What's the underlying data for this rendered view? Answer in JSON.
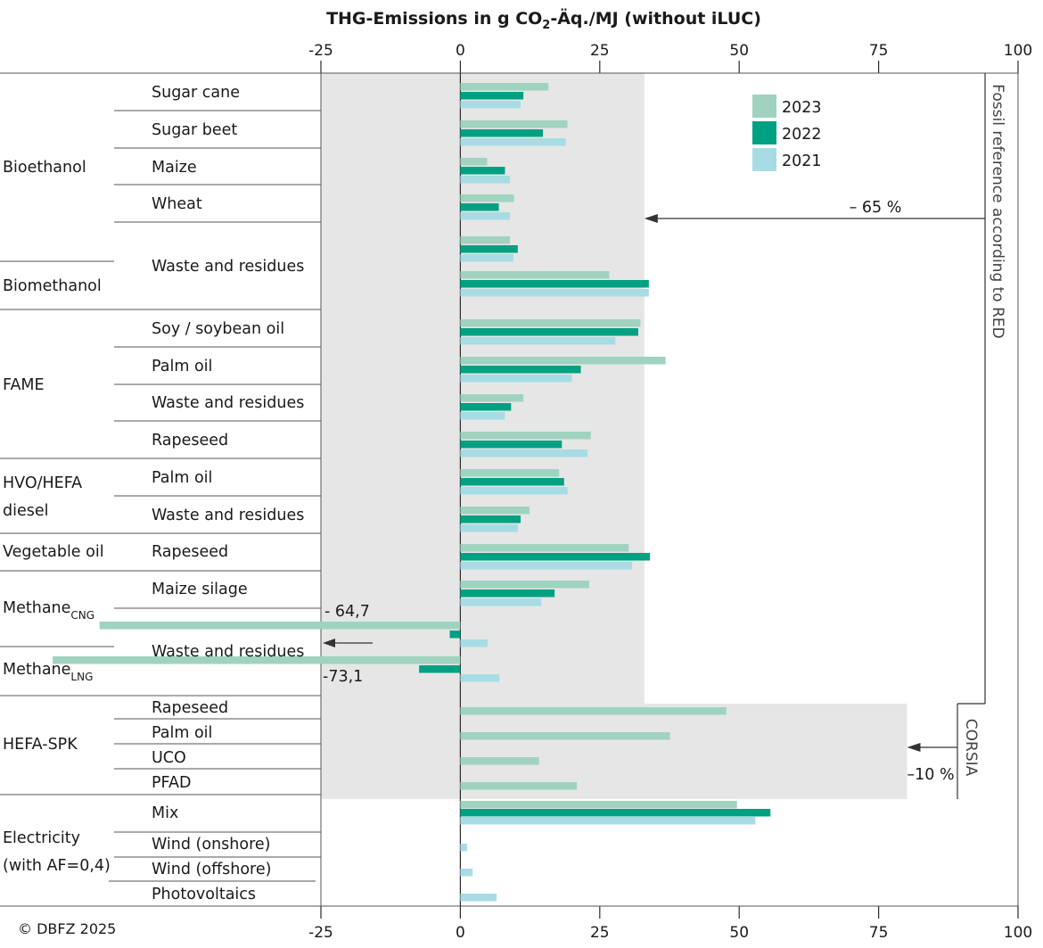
{
  "chart_data": {
    "type": "bar",
    "orientation": "horizontal",
    "title_parts": [
      "THG-Emissions in g CO",
      "2",
      "-Äq./MJ (without iLUC)"
    ],
    "xlim": [
      -25,
      100
    ],
    "xticks": [
      "-25",
      "0",
      "25",
      "50",
      "75",
      "100"
    ],
    "legend": {
      "position": "top-right",
      "entries": [
        "2023",
        "2022",
        "2021"
      ]
    },
    "colors": {
      "2023": "#9fd3c0",
      "2022": "#00a082",
      "2021": "#a7dce4",
      "shade": "#e6e6e6"
    },
    "groups": [
      {
        "label": "Bioethanol"
      },
      {
        "label": "Biomethanol"
      },
      {
        "label": "FAME"
      },
      {
        "label_lines": [
          "HVO/HEFA",
          "diesel"
        ]
      },
      {
        "label": "Vegetable oil"
      },
      {
        "label": "Methane",
        "sub": "CNG"
      },
      {
        "label": "Methane",
        "sub": "LNG"
      },
      {
        "label": "HEFA-SPK"
      },
      {
        "label_lines": [
          "Electricity",
          "(with AF=0,4)"
        ]
      }
    ],
    "rows": [
      {
        "label": "Sugar cane",
        "v2023": 15.8,
        "v2022": 11.3,
        "v2021": 10.8
      },
      {
        "label": "Sugar beet",
        "v2023": 19.2,
        "v2022": 14.8,
        "v2021": 18.9
      },
      {
        "label": "Maize",
        "v2023": 4.8,
        "v2022": 8.0,
        "v2021": 8.9
      },
      {
        "label": "Wheat",
        "v2023": 9.6,
        "v2022": 6.9,
        "v2021": 8.9
      },
      {
        "label": "Waste and residues",
        "v2023": 8.9,
        "v2022": 10.3,
        "v2021": 9.5,
        "note": "Bioethanol"
      },
      {
        "label": "",
        "v2023": 26.7,
        "v2022": 33.8,
        "v2021": 33.8,
        "note": "Biomethanol"
      },
      {
        "label": "Soy / soybean oil",
        "v2023": 32.3,
        "v2022": 31.9,
        "v2021": 27.8
      },
      {
        "label": "Palm oil",
        "v2023": 36.8,
        "v2022": 21.6,
        "v2021": 20.0
      },
      {
        "label": "Waste and residues",
        "v2023": 11.3,
        "v2022": 9.1,
        "v2021": 8.0
      },
      {
        "label": "Rapeseed",
        "v2023": 23.4,
        "v2022": 18.2,
        "v2021": 22.8
      },
      {
        "label": "Palm oil",
        "v2023": 17.7,
        "v2022": 18.6,
        "v2021": 19.2
      },
      {
        "label": "Waste and residues",
        "v2023": 12.4,
        "v2022": 10.8,
        "v2021": 10.3
      },
      {
        "label": "Rapeseed",
        "v2023": 30.2,
        "v2022": 34.0,
        "v2021": 30.8
      },
      {
        "label": "Maize silage",
        "v2023": 23.1,
        "v2022": 16.9,
        "v2021": 14.5
      },
      {
        "label": "Waste and residues",
        "v2023": -64.7,
        "v2022": -1.9,
        "v2021": 4.9,
        "note": "Methane CNG"
      },
      {
        "label": "",
        "v2023": -73.1,
        "v2022": -7.4,
        "v2021": 7.0,
        "note": "Methane LNG"
      },
      {
        "label": "Rapeseed",
        "v2023": 47.7,
        "v2022": null,
        "v2021": null
      },
      {
        "label": "Palm oil",
        "v2023": 37.6,
        "v2022": null,
        "v2021": null
      },
      {
        "label": "UCO",
        "v2023": 14.1,
        "v2022": null,
        "v2021": null
      },
      {
        "label": "PFAD",
        "v2023": 20.9,
        "v2022": null,
        "v2021": null
      },
      {
        "label": "Mix",
        "v2023": 49.6,
        "v2022": 55.6,
        "v2021": 52.9
      },
      {
        "label": "Wind (onshore)",
        "v2023": null,
        "v2022": null,
        "v2021": 1.2
      },
      {
        "label": "Wind (offshore)",
        "v2023": null,
        "v2022": null,
        "v2021": 2.2
      },
      {
        "label": "Photovoltaics",
        "v2023": null,
        "v2022": null,
        "v2021": 6.5
      }
    ],
    "annotations": {
      "cng_value": "- 64,7",
      "lng_value": "-73,1",
      "fossil_reference": "Fossil reference according to RED",
      "red_reduction": "– 65 %",
      "red_threshold": 33,
      "corsia": "CORSIA",
      "corsia_reduction": "–10 %",
      "corsia_threshold": 80.1
    },
    "copyright": "© DBFZ 2025"
  }
}
